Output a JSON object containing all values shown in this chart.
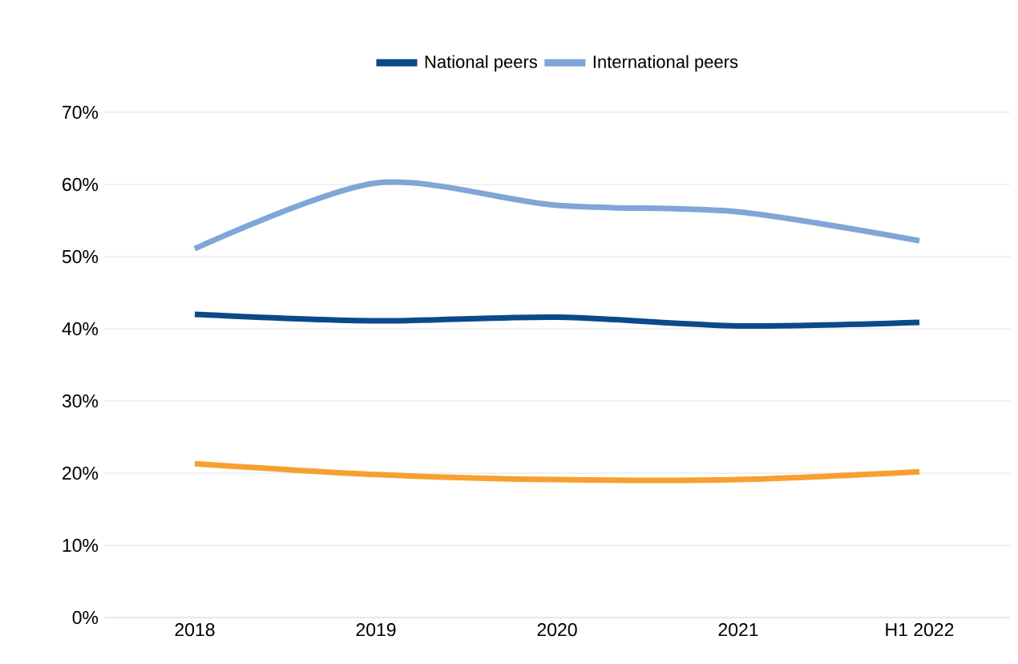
{
  "chart_data": {
    "type": "line",
    "categories": [
      "2018",
      "2019",
      "2020",
      "2021",
      "H1 2022"
    ],
    "series": [
      {
        "color": "#f7a030",
        "values": [
          21.3,
          19.8,
          19.1,
          19.1,
          20.2
        ]
      },
      {
        "name": "National peers",
        "color": "#0a4a8a",
        "values": [
          42.0,
          41.1,
          41.6,
          40.4,
          40.9
        ]
      },
      {
        "name": "International peers",
        "color": "#7ea6d6",
        "values": [
          51.1,
          60.2,
          57.1,
          56.2,
          52.2
        ]
      }
    ],
    "ylim": [
      0,
      70
    ],
    "yticks": [
      {
        "value": 0,
        "label": "0%"
      },
      {
        "value": 10,
        "label": "10%"
      },
      {
        "value": 20,
        "label": "20%"
      },
      {
        "value": 30,
        "label": "30%"
      },
      {
        "value": 40,
        "label": "40%"
      },
      {
        "value": 50,
        "label": "50%"
      },
      {
        "value": 60,
        "label": "60%"
      },
      {
        "value": 70,
        "label": "70%"
      }
    ],
    "grid": "y",
    "legend": "top",
    "marker": "none",
    "line_style": "solid"
  }
}
